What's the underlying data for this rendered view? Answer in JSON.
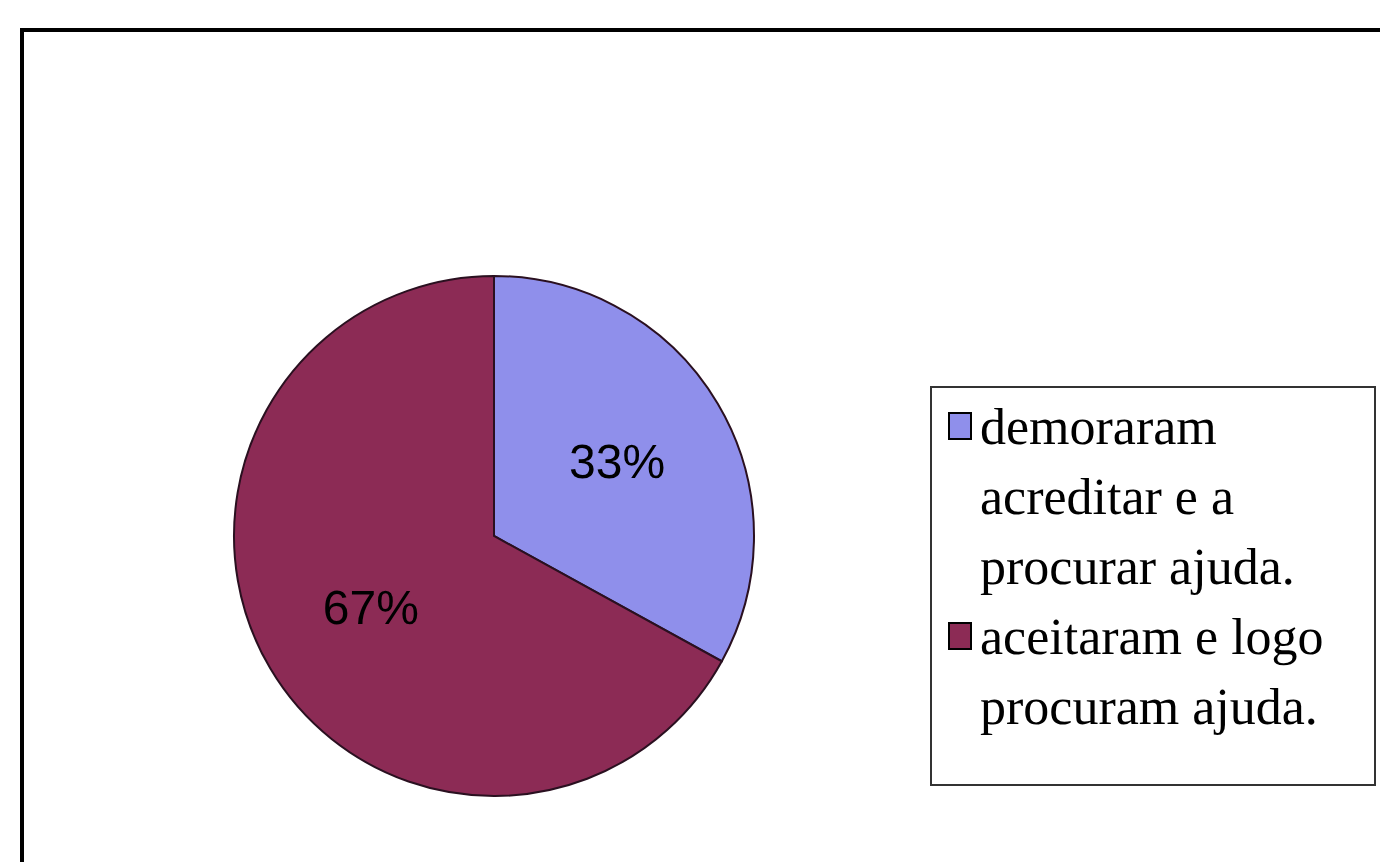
{
  "chart_data": {
    "type": "pie",
    "categories": [
      "demoraram acreditar e a procurar ajuda.",
      "aceitaram e logo procuram ajuda."
    ],
    "values": [
      33,
      67
    ],
    "colors": [
      "#8f8feb",
      "#8c2b55"
    ],
    "value_labels": [
      "33%",
      "67%"
    ],
    "legend": "right"
  }
}
